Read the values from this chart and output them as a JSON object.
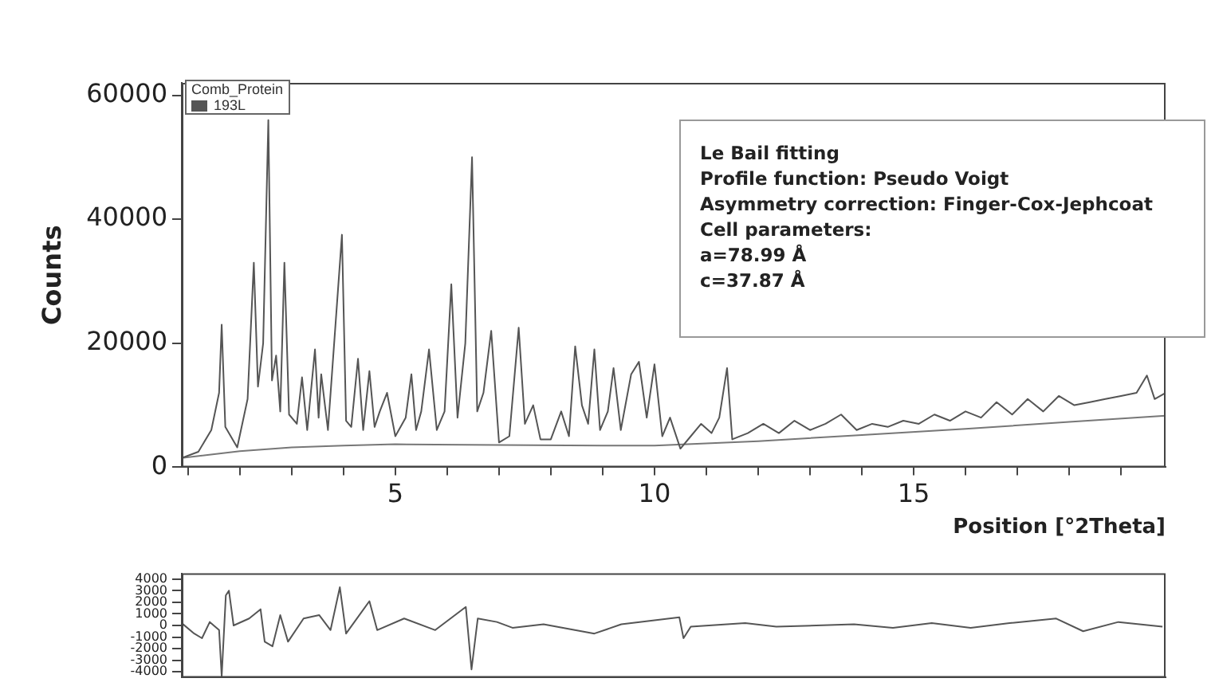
{
  "chart_data": [
    {
      "type": "line",
      "xlabel": "Position [°2Theta]",
      "ylabel": "Counts",
      "legend": "top left",
      "legend_title": "Comb_Protein",
      "grid": false,
      "marker": "none",
      "annotations": [
        "Le Bail fitting",
        "Profile function: Pseudo Voigt",
        "Asymmetry correction: Finger-Cox-Jephcoat",
        "Cell parameters:",
        "a=78.99 Å",
        "c=37.87 Å"
      ],
      "xlim": [
        0.88,
        19.86
      ],
      "ylim": [
        0,
        62000
      ],
      "yticks": [
        0,
        20000,
        40000,
        60000
      ],
      "xticks": [
        {
          "value": 1,
          "label": null
        },
        {
          "value": 2,
          "label": null
        },
        {
          "value": 3,
          "label": null
        },
        {
          "value": 4,
          "label": null
        },
        5,
        {
          "value": 6,
          "label": null
        },
        {
          "value": 7,
          "label": null
        },
        {
          "value": 8,
          "label": null
        },
        {
          "value": 9,
          "label": null
        },
        10,
        {
          "value": 11,
          "label": null
        },
        {
          "value": 12,
          "label": null
        },
        {
          "value": 13,
          "label": null
        },
        {
          "value": 14,
          "label": null
        },
        15,
        {
          "value": 16,
          "label": null
        },
        {
          "value": 17,
          "label": null
        },
        {
          "value": 18,
          "label": null
        },
        {
          "value": 19,
          "label": null
        }
      ],
      "series": [
        {
          "name": "193L",
          "color": "#555555",
          "x": [
            0.88,
            1.2,
            1.45,
            1.6,
            1.65,
            1.72,
            1.95,
            2.15,
            2.27,
            2.35,
            2.45,
            2.55,
            2.62,
            2.7,
            2.78,
            2.86,
            2.95,
            3.1,
            3.2,
            3.3,
            3.45,
            3.52,
            3.57,
            3.7,
            3.97,
            4.05,
            4.15,
            4.28,
            4.38,
            4.5,
            4.6,
            4.7,
            4.84,
            5.0,
            5.2,
            5.31,
            5.4,
            5.5,
            5.65,
            5.8,
            5.95,
            6.08,
            6.2,
            6.35,
            6.48,
            6.58,
            6.7,
            6.85,
            7.0,
            7.2,
            7.38,
            7.5,
            7.66,
            7.8,
            8.0,
            8.2,
            8.35,
            8.47,
            8.6,
            8.72,
            8.84,
            8.95,
            9.1,
            9.21,
            9.35,
            9.55,
            9.7,
            9.85,
            10.0,
            10.15,
            10.3,
            10.5,
            10.7,
            10.9,
            11.1,
            11.25,
            11.4,
            11.5,
            11.8,
            12.1,
            12.4,
            12.7,
            13.0,
            13.3,
            13.6,
            13.9,
            14.2,
            14.5,
            14.8,
            15.1,
            15.4,
            15.7,
            16.0,
            16.3,
            16.6,
            16.9,
            17.2,
            17.5,
            17.8,
            18.1,
            18.4,
            18.7,
            19.0,
            19.3,
            19.5,
            19.65,
            19.86
          ],
          "values": [
            1500,
            2500,
            6000,
            12000,
            23000,
            6500,
            3200,
            11000,
            33000,
            13000,
            20000,
            56000,
            14000,
            18000,
            9000,
            33000,
            8500,
            7000,
            14500,
            6000,
            19000,
            8000,
            15000,
            6000,
            37500,
            7500,
            6500,
            17500,
            6000,
            15500,
            6500,
            9000,
            12000,
            5000,
            8000,
            15000,
            6000,
            9000,
            19000,
            6000,
            9000,
            29500,
            8000,
            20000,
            50000,
            9000,
            12000,
            22000,
            4000,
            5000,
            22500,
            7000,
            10000,
            4500,
            4500,
            9000,
            5000,
            19500,
            10000,
            7000,
            19000,
            6000,
            9000,
            16000,
            6000,
            15000,
            17000,
            8000,
            16600,
            5000,
            8000,
            3000,
            5000,
            7000,
            5500,
            8000,
            16000,
            4500,
            5500,
            7000,
            5500,
            7500,
            6000,
            7000,
            8500,
            6000,
            7000,
            6500,
            7500,
            7000,
            8500,
            7500,
            9000,
            8000,
            10500,
            8500,
            11000,
            9000,
            11500,
            10000,
            10500,
            11000,
            11500,
            12000,
            14800,
            11000,
            12000
          ]
        },
        {
          "color": "#777777",
          "x": [
            0.88,
            2,
            3,
            4,
            5,
            7,
            9,
            10,
            12,
            14,
            16,
            18,
            19.86
          ],
          "values": [
            1500,
            2600,
            3200,
            3500,
            3700,
            3600,
            3500,
            3500,
            4200,
            5200,
            6200,
            7300,
            8300
          ]
        }
      ]
    },
    {
      "type": "line",
      "grid": false,
      "marker": "none",
      "tick_labels": "y",
      "xlim": [
        0.88,
        19.86
      ],
      "ylim": [
        -4500,
        4500
      ],
      "yticks": [
        -4000,
        -3000,
        -2000,
        -1000,
        0,
        1000,
        2000,
        3000,
        4000
      ],
      "series": [
        {
          "color": "#555555",
          "x": [
            0.88,
            1.12,
            1.27,
            1.42,
            1.6,
            1.65,
            1.73,
            1.79,
            1.88,
            2.18,
            2.4,
            2.48,
            2.63,
            2.78,
            2.93,
            3.23,
            3.53,
            3.75,
            3.93,
            4.05,
            4.5,
            4.65,
            5.17,
            5.77,
            6.36,
            6.47,
            6.59,
            6.96,
            7.26,
            7.86,
            8.84,
            9.36,
            10.48,
            10.56,
            10.7,
            11.75,
            12.35,
            13.85,
            14.6,
            15.35,
            16.1,
            16.85,
            17.75,
            18.27,
            18.95,
            19.8
          ],
          "values": [
            200,
            -700,
            -1100,
            300,
            -400,
            -4400,
            2600,
            3000,
            0,
            600,
            1400,
            -1400,
            -1800,
            900,
            -1400,
            600,
            900,
            -400,
            3300,
            -700,
            2100,
            -400,
            600,
            -400,
            1600,
            -3800,
            600,
            300,
            -200,
            100,
            -700,
            100,
            700,
            -1100,
            -100,
            200,
            -100,
            100,
            -200,
            200,
            -200,
            200,
            600,
            -500,
            300,
            -100
          ]
        }
      ]
    }
  ]
}
